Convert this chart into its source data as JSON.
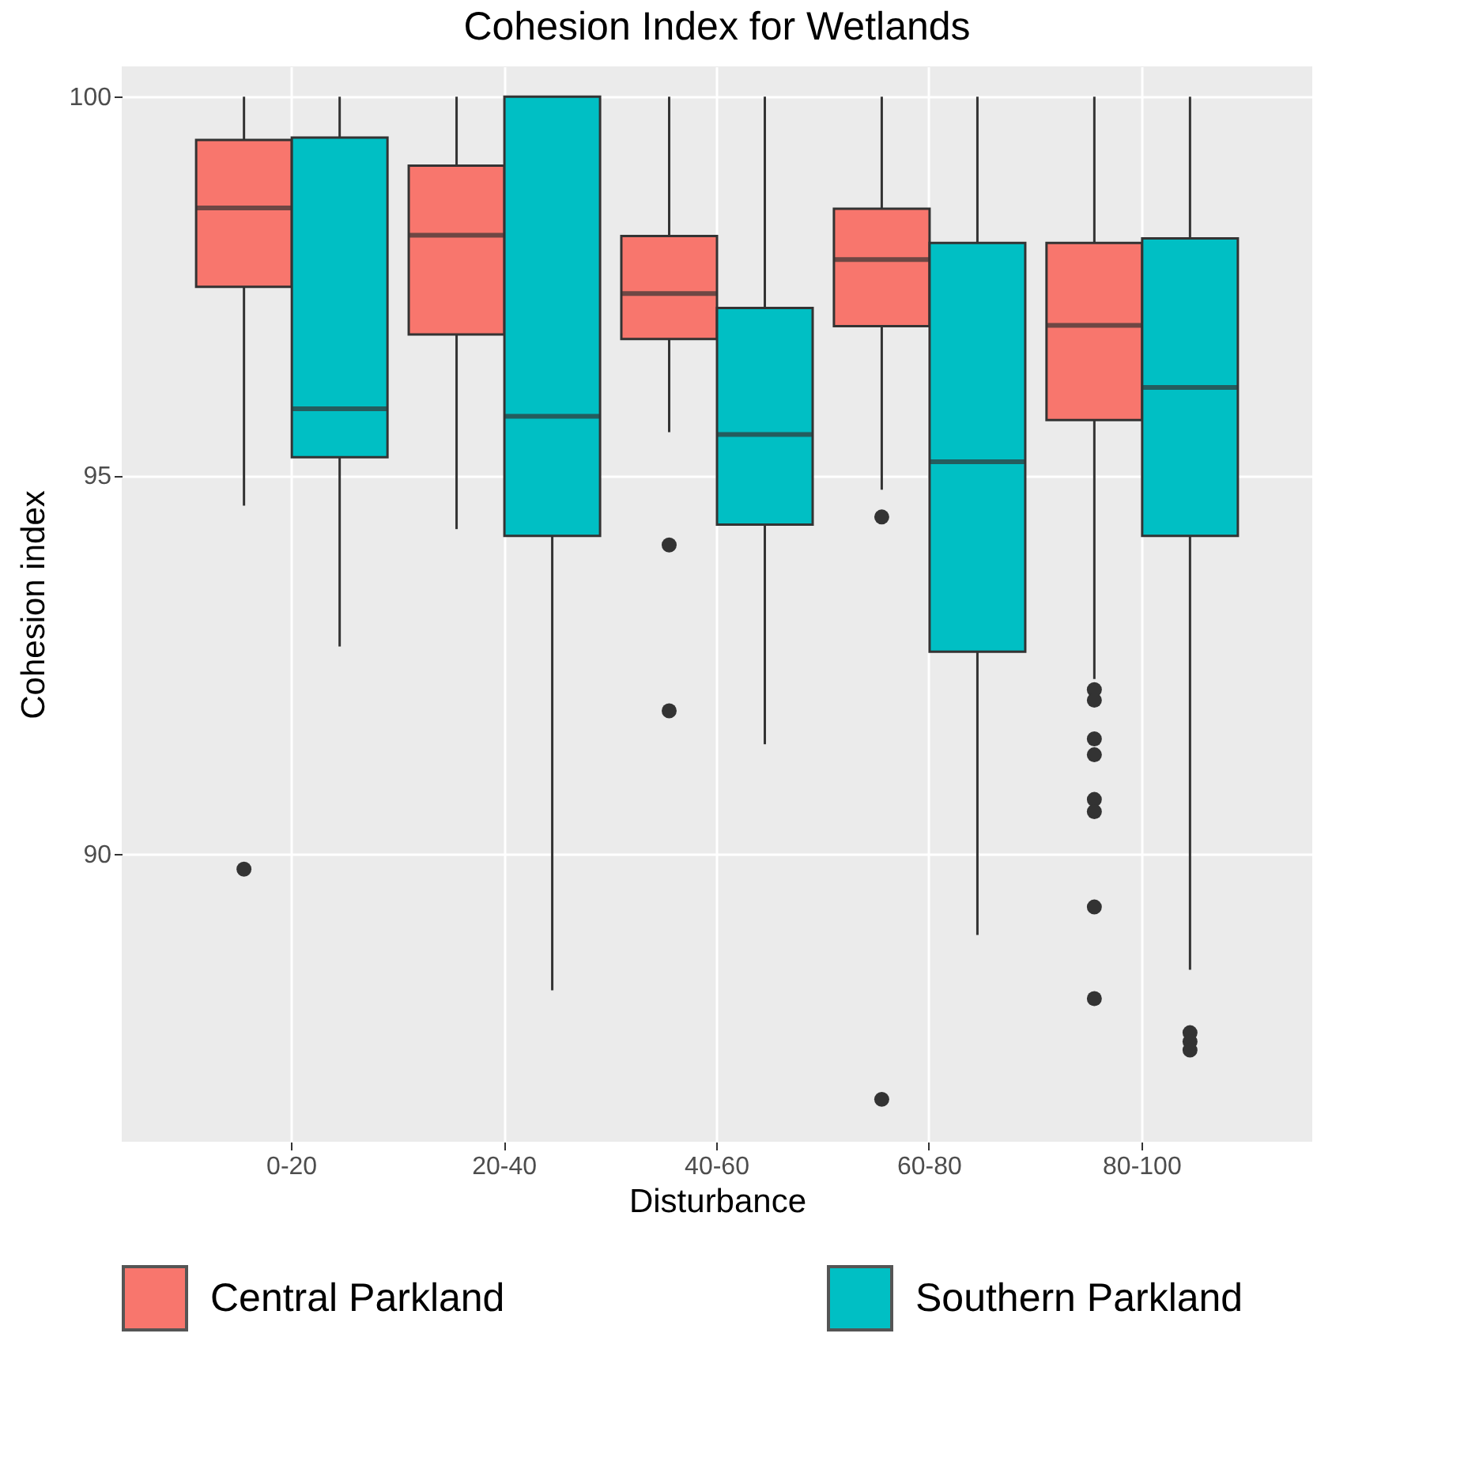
{
  "chart_data": {
    "type": "box",
    "title": "Cohesion Index for Wetlands",
    "xlabel": "Disturbance",
    "ylabel": "Cohesion index",
    "categories": [
      "0-20",
      "20-40",
      "40-60",
      "60-80",
      "80-100"
    ],
    "series": [
      {
        "name": "Central Parkland",
        "color": "#f8766d",
        "boxes": [
          {
            "low": 94.6,
            "q1": 97.49,
            "median": 98.53,
            "q3": 99.43,
            "high": 100,
            "outliers": [
              89.8
            ]
          },
          {
            "low": 94.29,
            "q1": 96.86,
            "median": 98.17,
            "q3": 99.09,
            "high": 100
          },
          {
            "low": 95.57,
            "q1": 96.8,
            "median": 97.4,
            "q3": 98.16,
            "high": 100,
            "outliers": [
              94.08,
              91.89
            ]
          },
          {
            "low": 94.81,
            "q1": 96.97,
            "median": 97.85,
            "q3": 98.52,
            "high": 100,
            "outliers": [
              94.45,
              86.76
            ]
          },
          {
            "low": 92.31,
            "q1": 95.73,
            "median": 96.98,
            "q3": 98.07,
            "high": 100,
            "outliers": [
              92.17,
              92.03,
              91.52,
              91.31,
              90.72,
              90.56,
              89.3,
              88.09
            ]
          }
        ]
      },
      {
        "name": "Southern Parkland",
        "color": "#00bfc4",
        "boxes": [
          {
            "low": 92.74,
            "q1": 95.24,
            "median": 95.88,
            "q3": 99.46,
            "high": 100
          },
          {
            "low": 88.2,
            "q1": 94.2,
            "median": 95.78,
            "q3": 100,
            "high": 100
          },
          {
            "low": 91.45,
            "q1": 94.35,
            "median": 95.54,
            "q3": 97.21,
            "high": 100
          },
          {
            "low": 88.93,
            "q1": 92.67,
            "median": 95.18,
            "q3": 98.07,
            "high": 100
          },
          {
            "low": 88.47,
            "q1": 94.2,
            "median": 96.16,
            "q3": 98.13,
            "high": 100,
            "outliers": [
              87.64,
              87.52,
              87.41
            ]
          }
        ]
      }
    ],
    "ylim": [
      86.2,
      100.4
    ],
    "yticks": [
      90,
      95,
      100
    ],
    "grid": true,
    "legend": "bottom"
  }
}
